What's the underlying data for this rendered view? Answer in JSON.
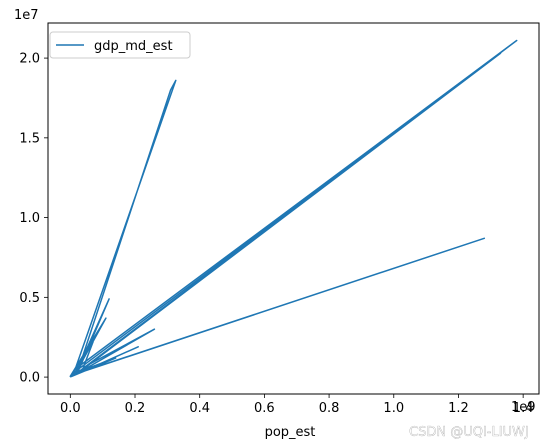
{
  "chart_data": {
    "type": "line",
    "title": "",
    "xlabel": "pop_est",
    "ylabel": "",
    "x_offset_label": "1e9",
    "y_offset_label": "1e7",
    "xlim": [
      -0.069,
      1.449
    ],
    "ylim": [
      -1.06,
      22.2
    ],
    "x_ticks": [
      0.0,
      0.2,
      0.4,
      0.6,
      0.8,
      1.0,
      1.2,
      1.4
    ],
    "x_tick_labels": [
      "0.0",
      "0.2",
      "0.4",
      "0.6",
      "0.8",
      "1.0",
      "1.2",
      "1.4"
    ],
    "y_ticks": [
      0.0,
      0.5,
      1.0,
      1.5,
      2.0
    ],
    "y_tick_labels": [
      "0.0",
      "0.5",
      "1.0",
      "1.5",
      "2.0"
    ],
    "grid": false,
    "legend": {
      "position": "top-left"
    },
    "series": [
      {
        "name": "gdp_md_est",
        "color": "#1f77b4",
        "x": [
          0.0,
          0.01,
          0.035,
          0.022,
          0.31,
          0.326,
          0.015,
          1.38,
          0.03,
          0.02,
          1.33,
          0.012,
          0.008,
          1.28,
          0.017,
          0.025,
          0.12,
          0.018,
          0.11,
          0.0,
          0.07,
          0.04,
          0.26,
          0.01,
          0.21,
          0.005,
          0.14,
          0.02,
          0.1,
          0.013,
          0.0
        ],
        "y": [
          0.0,
          0.2,
          0.9,
          0.3,
          18.0,
          18.6,
          0.5,
          21.1,
          0.4,
          0.2,
          20.3,
          0.3,
          0.15,
          8.7,
          0.2,
          0.4,
          4.9,
          0.3,
          3.7,
          0.05,
          2.2,
          0.6,
          3.0,
          0.1,
          1.9,
          0.05,
          1.2,
          0.3,
          0.8,
          0.2,
          0.0
        ]
      }
    ],
    "watermark": "CSDN @UQI-LIUWJ"
  }
}
